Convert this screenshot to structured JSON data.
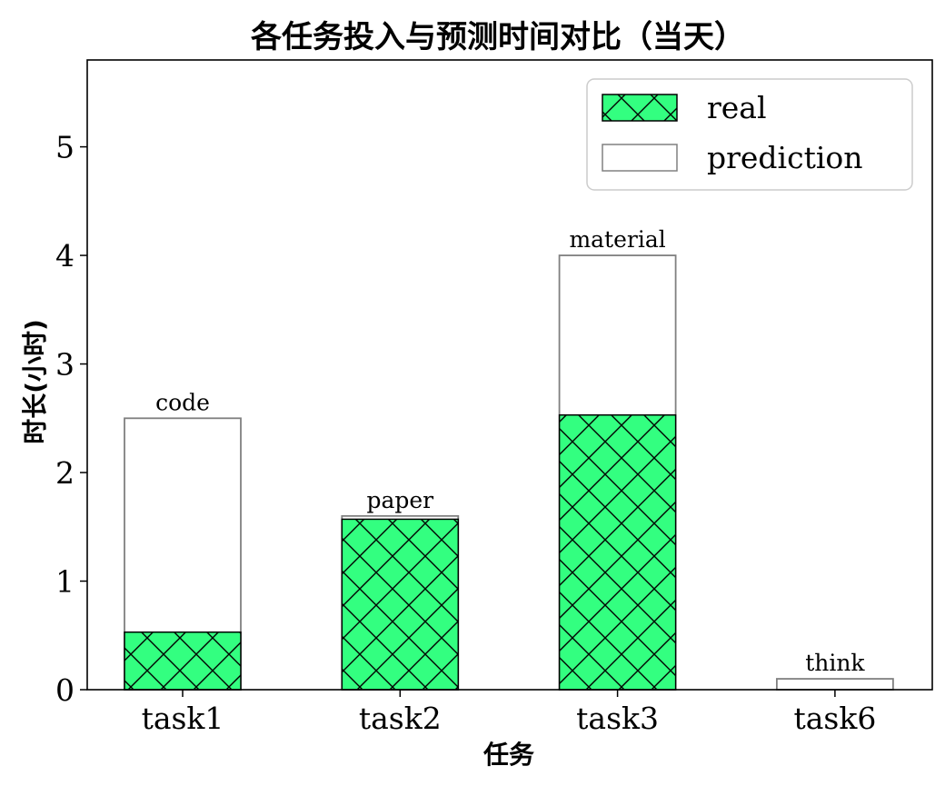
{
  "chart_data": {
    "type": "bar",
    "title": "各任务投入与预测时间对比（当天）",
    "xlabel": "任务",
    "ylabel": "时长(小时)",
    "categories": [
      "task1",
      "task2",
      "task3",
      "task6"
    ],
    "bar_labels": [
      "code",
      "paper",
      "material",
      "think"
    ],
    "series": [
      {
        "name": "real",
        "values": [
          0.53,
          1.57,
          2.53,
          0.0
        ],
        "color": "#33ff80",
        "hatch": "crosshatch-diagonal"
      },
      {
        "name": "prediction",
        "values": [
          2.5,
          1.6,
          4.0,
          0.1
        ],
        "color": "#ffffff",
        "edgecolor": "#808080"
      }
    ],
    "ylim": [
      0,
      5.8
    ],
    "yticks": [
      0,
      1,
      2,
      3,
      4,
      5
    ],
    "grid": false,
    "legend_position": "top-right"
  }
}
